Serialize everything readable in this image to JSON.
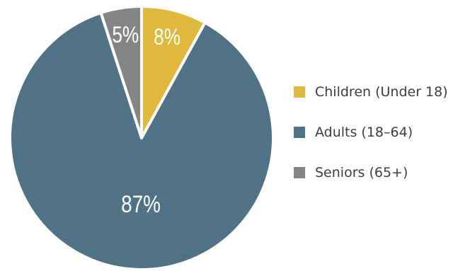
{
  "chart_data": {
    "type": "pie",
    "title": "",
    "slices": [
      {
        "label": "Children (Under 18)",
        "value": 8,
        "display": "8%",
        "color": "#dfb83c"
      },
      {
        "label": "Adults (18–64)",
        "value": 87,
        "display": "87%",
        "color": "#4f7287"
      },
      {
        "label": "Seniors (65+)",
        "value": 5,
        "display": "5%",
        "color": "#848587"
      }
    ],
    "legend_position": "right",
    "start_angle": "12 o'clock",
    "direction": "clockwise",
    "slice_border_color": "#ffffff"
  }
}
